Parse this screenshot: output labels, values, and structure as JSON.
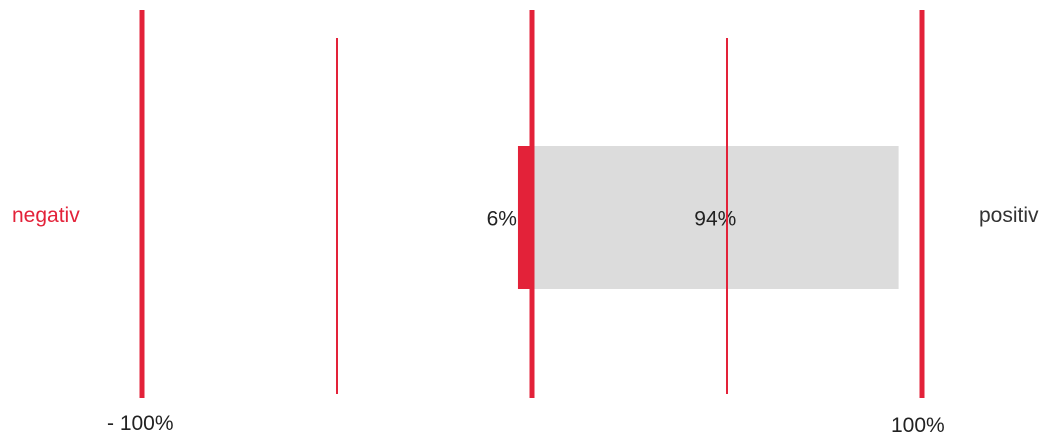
{
  "labels": {
    "negative": "negativ",
    "positive": "positiv"
  },
  "chart_data": {
    "type": "bar",
    "orientation": "horizontal",
    "stacking": "diverging",
    "xlim": [
      -100,
      100
    ],
    "gridlines": [
      -100,
      -50,
      0,
      50,
      100
    ],
    "tick_labels": [
      "- 100%",
      "100%"
    ],
    "series": [
      {
        "name": "negativ",
        "value": -6,
        "label": "6%",
        "color": "#e32239"
      },
      {
        "name": "positiv",
        "value": 94,
        "label": "94%",
        "color": "#dcdcdc"
      }
    ],
    "line_color": "#e32239",
    "negative_label_color": "#e32239",
    "positive_label_color": "#333333"
  }
}
